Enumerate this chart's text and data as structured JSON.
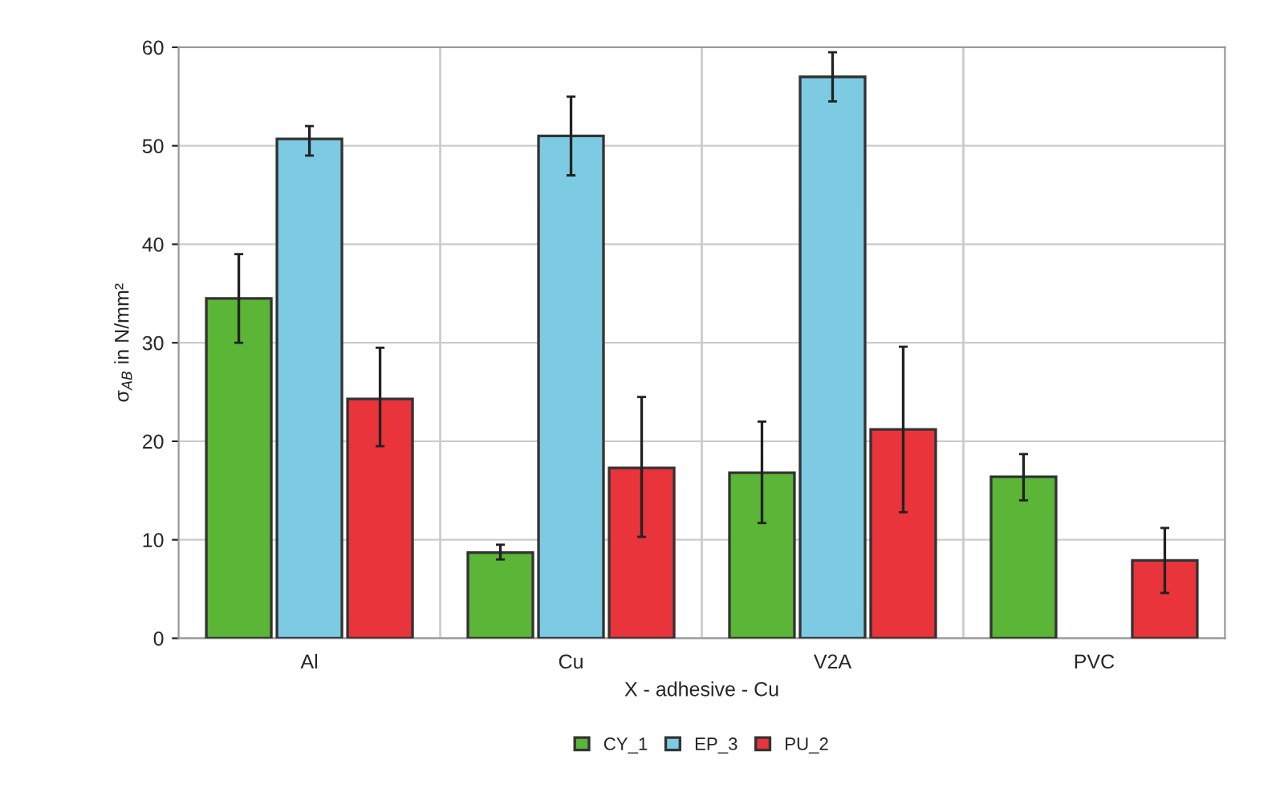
{
  "chart_data": {
    "type": "bar",
    "xlabel": "X - adhesive - Cu",
    "ylabel": "σ$_{AB}$ in N/mm²",
    "categories": [
      "Al",
      "Cu",
      "V2A",
      "PVC"
    ],
    "series": [
      {
        "name": "CY_1",
        "color": "#5bb536",
        "values": [
          34.5,
          8.7,
          16.8,
          16.4
        ],
        "errors": [
          [
            30,
            39
          ],
          [
            8,
            9.5
          ],
          [
            11.7,
            22
          ],
          [
            14,
            18.7
          ]
        ]
      },
      {
        "name": "EP_3",
        "color": "#7ccbe3",
        "values": [
          50.7,
          51,
          57,
          null
        ],
        "errors": [
          [
            49,
            52
          ],
          [
            47,
            55
          ],
          [
            54.5,
            59.5
          ],
          null
        ]
      },
      {
        "name": "PU_2",
        "color": "#e8343a",
        "values": [
          24.3,
          17.3,
          21.2,
          7.9
        ],
        "errors": [
          [
            19.5,
            29.5
          ],
          [
            10.3,
            24.5
          ],
          [
            12.8,
            29.6
          ],
          [
            4.6,
            11.2
          ]
        ]
      }
    ],
    "ylim": [
      0,
      60
    ],
    "yticks": [
      0,
      10,
      20,
      30,
      40,
      50,
      60
    ],
    "grid": true,
    "legend": "bottom"
  }
}
